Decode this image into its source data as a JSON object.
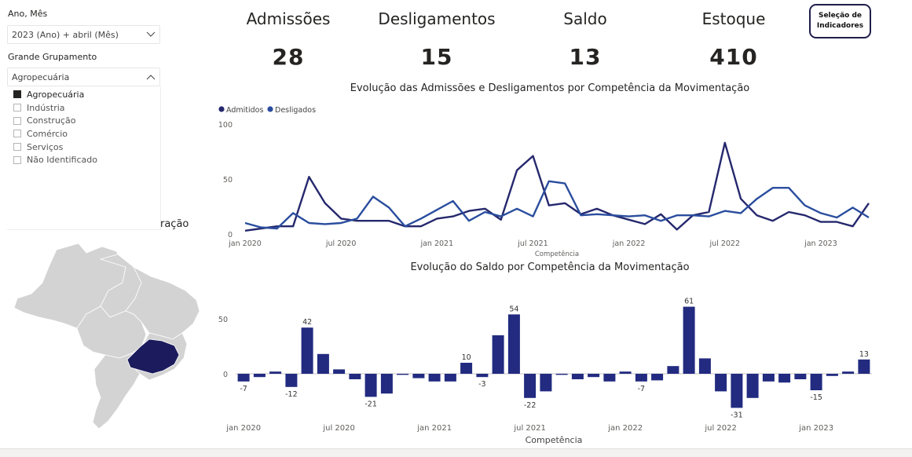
{
  "slicer_period": {
    "title": "Ano, Mês",
    "value": "2023 (Ano) + abril (Mês)"
  },
  "slicer_group": {
    "title": "Grande Grupamento",
    "value": "Agropecuária",
    "options": [
      {
        "label": "Agropecuária",
        "checked": true
      },
      {
        "label": "Indústria",
        "checked": false
      },
      {
        "label": "Construção",
        "checked": false
      },
      {
        "label": "Comércio",
        "checked": false
      },
      {
        "label": "Serviços",
        "checked": false
      },
      {
        "label": "Não Identificado",
        "checked": false
      }
    ]
  },
  "map": {
    "title_fragment": "ração",
    "highlight_color": "#1b1b5e",
    "base_color": "#d3d3d3"
  },
  "kpis": [
    {
      "label": "Admissões",
      "value": "28"
    },
    {
      "label": "Desligamentos",
      "value": "15"
    },
    {
      "label": "Saldo",
      "value": "13"
    },
    {
      "label": "Estoque",
      "value": "410"
    }
  ],
  "indicator_button": {
    "label": "Seleção de\nIndicadores"
  },
  "colors": {
    "admitidos": "#25286d",
    "desligados": "#2a4d9e",
    "saldo": "#222b80"
  },
  "line_chart_title": "Evolução das Admissões e Desligamentos por Competência da Movimentação",
  "bar_chart_title": "Evolução do Saldo por Competência da Movimentação",
  "chart_data": [
    {
      "type": "line",
      "title": "Evolução das Admissões e Desligamentos por Competência da Movimentação",
      "xlabel": "Competência",
      "ylabel": "",
      "ylim": [
        0,
        100
      ],
      "yticks": [
        0,
        50,
        100
      ],
      "xticks": [
        "jan 2020",
        "jul 2020",
        "jan 2021",
        "jul 2021",
        "jan 2022",
        "jul 2022",
        "jan 2023"
      ],
      "legend": "top-left",
      "x": [
        "jan 2020",
        "fev 2020",
        "mar 2020",
        "abr 2020",
        "mai 2020",
        "jun 2020",
        "jul 2020",
        "ago 2020",
        "set 2020",
        "out 2020",
        "nov 2020",
        "dez 2020",
        "jan 2021",
        "fev 2021",
        "mar 2021",
        "abr 2021",
        "mai 2021",
        "jun 2021",
        "jul 2021",
        "ago 2021",
        "set 2021",
        "out 2021",
        "nov 2021",
        "dez 2021",
        "jan 2022",
        "fev 2022",
        "mar 2022",
        "abr 2022",
        "mai 2022",
        "jun 2022",
        "jul 2022",
        "ago 2022",
        "set 2022",
        "out 2022",
        "nov 2022",
        "dez 2022",
        "jan 2023",
        "fev 2023",
        "mar 2023",
        "abr 2023"
      ],
      "series": [
        {
          "name": "Admitidos",
          "values": [
            3,
            5,
            7,
            7,
            52,
            28,
            14,
            12,
            12,
            12,
            7,
            7,
            14,
            16,
            21,
            23,
            13,
            58,
            71,
            26,
            28,
            18,
            23,
            17,
            13,
            9,
            18,
            4,
            17,
            20,
            83,
            32,
            17,
            12,
            20,
            17,
            11,
            11,
            7,
            28
          ]
        },
        {
          "name": "Desligados",
          "values": [
            10,
            6,
            5,
            19,
            10,
            9,
            10,
            14,
            34,
            24,
            7,
            14,
            22,
            30,
            12,
            20,
            16,
            23,
            16,
            48,
            46,
            17,
            18,
            17,
            16,
            17,
            12,
            17,
            17,
            16,
            21,
            19,
            32,
            42,
            42,
            26,
            19,
            15,
            24,
            15
          ]
        }
      ]
    },
    {
      "type": "bar",
      "title": "Evolução do Saldo por Competência da Movimentação",
      "xlabel": "Competência",
      "ylabel": "",
      "yticks": [
        0,
        50
      ],
      "xticks": [
        "jan 2020",
        "jul 2020",
        "jan 2021",
        "jul 2021",
        "jan 2022",
        "jul 2022",
        "jan 2023"
      ],
      "categories": [
        "jan 2020",
        "fev 2020",
        "mar 2020",
        "abr 2020",
        "mai 2020",
        "jun 2020",
        "jul 2020",
        "ago 2020",
        "set 2020",
        "out 2020",
        "nov 2020",
        "dez 2020",
        "jan 2021",
        "fev 2021",
        "mar 2021",
        "abr 2021",
        "mai 2021",
        "jun 2021",
        "jul 2021",
        "ago 2021",
        "set 2021",
        "out 2021",
        "nov 2021",
        "dez 2021",
        "jan 2022",
        "fev 2022",
        "mar 2022",
        "abr 2022",
        "mai 2022",
        "jun 2022",
        "jul 2022",
        "ago 2022",
        "set 2022",
        "out 2022",
        "nov 2022",
        "dez 2022",
        "jan 2023",
        "fev 2023",
        "mar 2023",
        "abr 2023"
      ],
      "values": [
        -7,
        -3,
        2,
        -12,
        42,
        18,
        4,
        -5,
        -21,
        -18,
        -1,
        -4,
        -7,
        -7,
        10,
        -3,
        35,
        54,
        -22,
        -16,
        -1,
        -5,
        -3,
        -7,
        2,
        -7,
        -6,
        7,
        61,
        14,
        -16,
        -31,
        -22,
        -7,
        -8,
        -5,
        -15,
        -2,
        2,
        13
      ],
      "labeled": [
        {
          "category": "jan 2020",
          "label": "-7"
        },
        {
          "category": "abr 2020",
          "label": "-12"
        },
        {
          "category": "mai 2020",
          "label": "42"
        },
        {
          "category": "set 2020",
          "label": "-21"
        },
        {
          "category": "mar 2021",
          "label": "10"
        },
        {
          "category": "abr 2021",
          "label": "-3"
        },
        {
          "category": "jun 2021",
          "label": "54"
        },
        {
          "category": "jul 2021",
          "label": "-22"
        },
        {
          "category": "fev 2022",
          "label": "-7"
        },
        {
          "category": "mai 2022",
          "label": "61"
        },
        {
          "category": "ago 2022",
          "label": "-31"
        },
        {
          "category": "jan 2023",
          "label": "-15"
        },
        {
          "category": "abr 2023",
          "label": "13"
        }
      ]
    }
  ]
}
